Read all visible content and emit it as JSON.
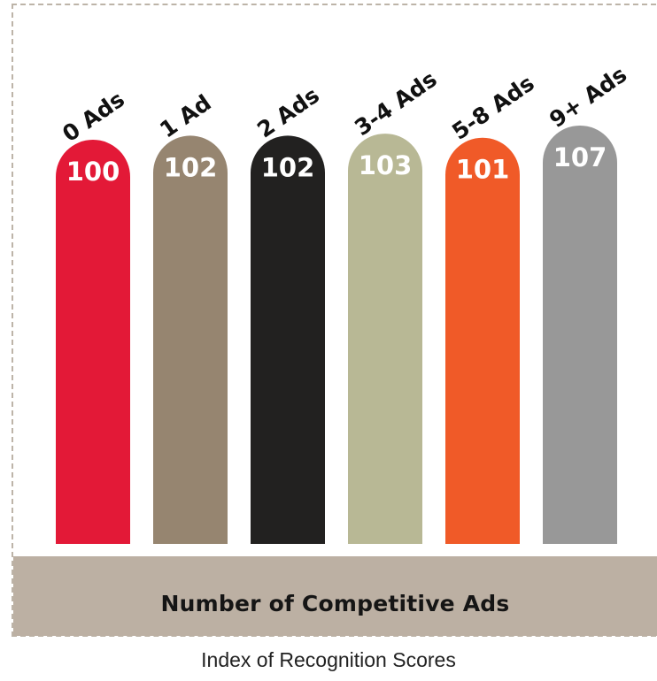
{
  "chart_data": {
    "type": "bar",
    "categories": [
      "0 Ads",
      "1 Ad",
      "2 Ads",
      "3-4 Ads",
      "5-8 Ads",
      "9+ Ads"
    ],
    "values": [
      100,
      102,
      102,
      103,
      101,
      107
    ],
    "colors": [
      "#e31937",
      "#968570",
      "#222120",
      "#b8b895",
      "#f05a28",
      "#989898"
    ],
    "xlabel": "Number of Competitive Ads",
    "caption": "Index of Recognition Scores",
    "band_color": "#bcb0a3",
    "frame_color": "#bdb4a8",
    "legend": "none",
    "grid": false
  }
}
